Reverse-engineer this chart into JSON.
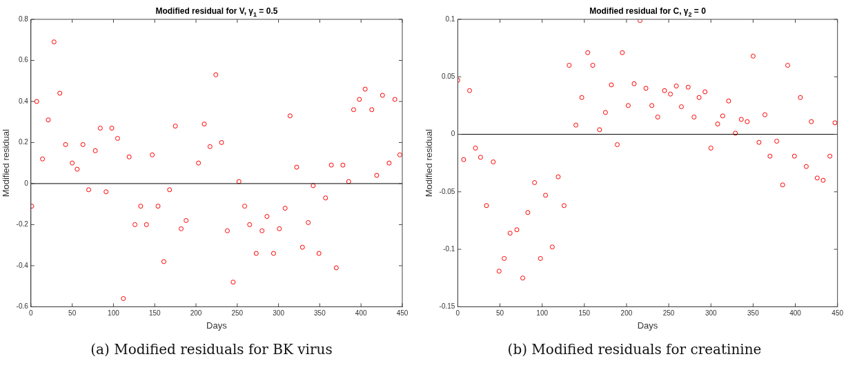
{
  "chart_data": [
    {
      "type": "scatter",
      "title": "Modified residual for V, γ$_{1}$ = 0.5",
      "xlabel": "Days",
      "ylabel": "Modified residual",
      "annotations": [
        "(a) Modified residuals for BK virus"
      ],
      "marker": "circle",
      "grid": false,
      "legend": false,
      "xlim": [
        0,
        450
      ],
      "xticks": [
        0,
        50,
        100,
        150,
        200,
        250,
        300,
        350,
        400,
        450
      ],
      "ylim": [
        -0.6,
        0.8
      ],
      "yticks": [
        -0.6,
        -0.4,
        -0.2,
        0,
        0.2,
        0.4,
        0.6,
        0.8
      ],
      "ref_lines": [
        {
          "axis": "y",
          "value": 0,
          "color": "#000000"
        }
      ],
      "series": [
        {
          "color": "#ff0000",
          "x": [
            1,
            7,
            14,
            21,
            28,
            35,
            42,
            50,
            56,
            63,
            70,
            78,
            84,
            91,
            98,
            105,
            112,
            119,
            126,
            133,
            140,
            147,
            154,
            161,
            168,
            175,
            182,
            188,
            203,
            210,
            217,
            224,
            231,
            238,
            245,
            252,
            259,
            265,
            273,
            280,
            286,
            294,
            301,
            308,
            314,
            322,
            329,
            336,
            342,
            349,
            357,
            364,
            370,
            378,
            385,
            391,
            398,
            405,
            413,
            419,
            426,
            434,
            441,
            447
          ],
          "values": [
            -0.11,
            0.4,
            0.12,
            0.31,
            0.69,
            0.44,
            0.19,
            0.1,
            0.07,
            0.19,
            -0.03,
            0.16,
            0.27,
            -0.04,
            0.27,
            0.22,
            -0.56,
            0.13,
            -0.2,
            -0.11,
            -0.2,
            0.14,
            -0.11,
            -0.38,
            -0.03,
            0.28,
            -0.22,
            -0.18,
            0.1,
            0.29,
            0.18,
            0.53,
            0.2,
            -0.23,
            -0.48,
            0.01,
            -0.11,
            -0.2,
            -0.34,
            -0.23,
            -0.16,
            -0.34,
            -0.22,
            -0.12,
            0.33,
            0.08,
            -0.31,
            -0.19,
            -0.01,
            -0.34,
            -0.07,
            0.09,
            -0.41,
            0.09,
            0.01,
            0.36,
            0.41,
            0.46,
            0.36,
            0.04,
            0.43,
            0.1,
            0.41,
            0.14
          ]
        }
      ]
    },
    {
      "type": "scatter",
      "title": "Modified residual for C, γ$_{2}$ = 0",
      "xlabel": "Days",
      "ylabel": "Modified residual",
      "annotations": [
        "(b) Modified residuals for creatinine"
      ],
      "marker": "circle",
      "grid": false,
      "legend": false,
      "xlim": [
        0,
        450
      ],
      "xticks": [
        0,
        50,
        100,
        150,
        200,
        250,
        300,
        350,
        400,
        450
      ],
      "ylim": [
        -0.15,
        0.1
      ],
      "yticks": [
        -0.15,
        -0.1,
        -0.05,
        0,
        0.05,
        0.1
      ],
      "ref_lines": [
        {
          "axis": "y",
          "value": 0,
          "color": "#000000"
        }
      ],
      "series": [
        {
          "color": "#ff0000",
          "x": [
            0,
            7,
            14,
            21,
            27,
            34,
            42,
            49,
            55,
            62,
            70,
            77,
            83,
            91,
            98,
            104,
            112,
            119,
            126,
            132,
            140,
            147,
            154,
            160,
            168,
            175,
            182,
            189,
            195,
            202,
            209,
            216,
            223,
            230,
            237,
            245,
            252,
            259,
            265,
            273,
            280,
            286,
            293,
            300,
            308,
            314,
            321,
            329,
            336,
            343,
            350,
            357,
            364,
            370,
            378,
            385,
            391,
            399,
            406,
            413,
            419,
            426,
            433,
            441,
            447
          ],
          "values": [
            0.047,
            -0.022,
            0.038,
            -0.012,
            -0.02,
            -0.062,
            -0.024,
            -0.119,
            -0.108,
            -0.086,
            -0.083,
            -0.125,
            -0.068,
            -0.042,
            -0.108,
            -0.053,
            -0.098,
            -0.037,
            -0.062,
            0.06,
            0.008,
            0.032,
            0.071,
            0.06,
            0.004,
            0.019,
            0.043,
            -0.009,
            0.071,
            0.025,
            0.044,
            0.099,
            0.04,
            0.025,
            0.015,
            0.038,
            0.035,
            0.042,
            0.024,
            0.041,
            0.015,
            0.032,
            0.037,
            -0.012,
            0.009,
            0.016,
            0.029,
            0.001,
            0.013,
            0.011,
            0.068,
            -0.007,
            0.017,
            -0.019,
            -0.006,
            -0.044,
            0.06,
            -0.019,
            0.032,
            -0.028,
            0.011,
            -0.038,
            -0.04,
            -0.019,
            0.01
          ]
        }
      ]
    }
  ]
}
